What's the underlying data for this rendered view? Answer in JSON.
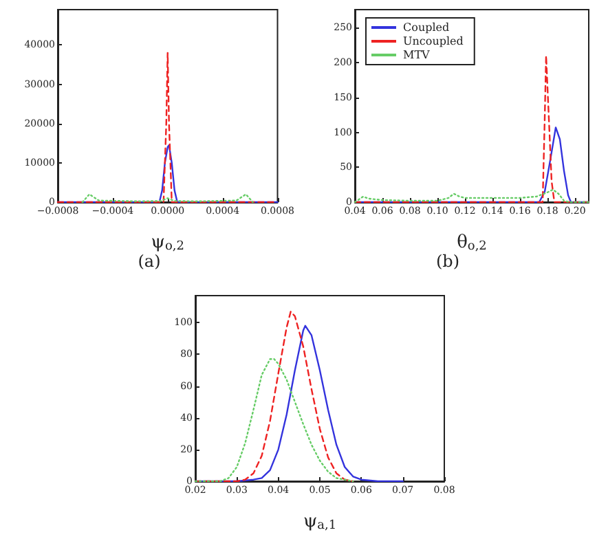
{
  "chart_data": [
    {
      "type": "line",
      "xlabel": "ψ$_{o,2}$",
      "annotations": [
        "(a)"
      ],
      "xlim": [
        -0.0008,
        0.0008
      ],
      "xticks": [
        {
          "value": -0.0008,
          "label": "−0.0008"
        },
        {
          "value": -0.0004,
          "label": "−0.0004"
        },
        {
          "value": 0,
          "label": "0.0000"
        },
        0.0004,
        0.0008
      ],
      "ylim": [
        0,
        49000
      ],
      "yticks": [
        0,
        10000,
        20000,
        30000,
        40000
      ],
      "series": [
        {
          "color": "#3333dd",
          "line_style": "solid",
          "x": [
            -0.0008,
            -6e-05,
            -4e-05,
            -2e-05,
            0,
            1e-05,
            3e-05,
            5e-05,
            7e-05,
            0.0008
          ],
          "values": [
            0,
            0,
            3000,
            10000,
            14000,
            14500,
            10000,
            3000,
            0,
            0
          ]
        },
        {
          "color": "#ee2222",
          "line_style": "dashed",
          "x": [
            -0.0008,
            -3e-05,
            -1e-05,
            0,
            1e-05,
            3e-05,
            0.0008
          ],
          "values": [
            0,
            0,
            20000,
            38000,
            20000,
            0,
            0
          ]
        },
        {
          "color": "#66cc66",
          "line_style": "dotted",
          "x": [
            -0.00062,
            -0.00057,
            -0.0005,
            -0.0002,
            -5e-05,
            0,
            5e-05,
            0.0002,
            0.0005,
            0.00057,
            0.00062
          ],
          "values": [
            0,
            2000,
            400,
            200,
            300,
            1000,
            300,
            200,
            400,
            2000,
            0
          ]
        }
      ]
    },
    {
      "type": "line",
      "xlabel": "θ$_{o,2}$",
      "annotations": [
        "(b)"
      ],
      "legend": "top left",
      "xlim": [
        0.04,
        0.21
      ],
      "xticks": [
        0.04,
        0.06,
        0.08,
        {
          "value": 0.1,
          "label": "0.10"
        },
        0.12,
        0.14,
        0.16,
        0.18,
        {
          "value": 0.2,
          "label": "0.20"
        }
      ],
      "ylim": [
        0,
        276
      ],
      "yticks": [
        0,
        50,
        100,
        150,
        200,
        250
      ],
      "series": [
        {
          "name": "Coupled",
          "color": "#3333dd",
          "line_style": "solid",
          "x": [
            0.04,
            0.174,
            0.178,
            0.182,
            0.186,
            0.189,
            0.192,
            0.195,
            0.197,
            0.21
          ],
          "values": [
            0,
            0,
            15,
            60,
            107,
            90,
            45,
            10,
            0,
            0
          ]
        },
        {
          "name": "Uncoupled",
          "color": "#ee2222",
          "line_style": "dashed",
          "x": [
            0.04,
            0.1765,
            0.178,
            0.179,
            0.181,
            0.183,
            0.185,
            0.21
          ],
          "values": [
            0,
            0,
            120,
            210,
            120,
            30,
            0,
            0
          ]
        },
        {
          "name": "MTV",
          "color": "#66cc66",
          "line_style": "dotted",
          "x": [
            0.04,
            0.046,
            0.05,
            0.06,
            0.08,
            0.1,
            0.108,
            0.112,
            0.116,
            0.12,
            0.16,
            0.172,
            0.18,
            0.184,
            0.188,
            0.192,
            0.196,
            0.21
          ],
          "values": [
            0,
            8,
            5,
            3,
            2,
            2,
            6,
            12,
            8,
            6,
            6,
            8,
            14,
            18,
            12,
            2,
            0,
            0
          ]
        }
      ]
    },
    {
      "type": "line",
      "xlabel": "ψ$_{a,1}$",
      "xlim": [
        0.02,
        0.08
      ],
      "xticks": [
        0.02,
        0.03,
        0.04,
        0.05,
        0.06,
        0.07,
        0.08
      ],
      "ylim": [
        0,
        117
      ],
      "yticks": [
        0,
        20,
        40,
        60,
        80,
        100
      ],
      "series": [
        {
          "color": "#3333dd",
          "line_style": "solid",
          "x": [
            0.02,
            0.03,
            0.034,
            0.036,
            0.038,
            0.04,
            0.042,
            0.044,
            0.046,
            0.0465,
            0.048,
            0.05,
            0.052,
            0.054,
            0.056,
            0.058,
            0.06,
            0.064,
            0.07
          ],
          "values": [
            0,
            0,
            1,
            2,
            7,
            20,
            42,
            70,
            95,
            98,
            92,
            70,
            45,
            23,
            9,
            3,
            1,
            0,
            0
          ]
        },
        {
          "color": "#ee2222",
          "line_style": "dashed",
          "x": [
            0.02,
            0.03,
            0.032,
            0.034,
            0.036,
            0.038,
            0.04,
            0.042,
            0.043,
            0.044,
            0.046,
            0.048,
            0.05,
            0.052,
            0.054,
            0.056,
            0.058
          ],
          "values": [
            0,
            0,
            1,
            5,
            16,
            38,
            68,
            97,
            107,
            104,
            85,
            58,
            33,
            15,
            5,
            1,
            0
          ]
        },
        {
          "color": "#66cc66",
          "line_style": "dotted",
          "x": [
            0.02,
            0.026,
            0.028,
            0.03,
            0.032,
            0.034,
            0.036,
            0.038,
            0.039,
            0.04,
            0.042,
            0.044,
            0.046,
            0.048,
            0.05,
            0.052,
            0.054,
            0.056,
            0.058
          ],
          "values": [
            0,
            0,
            2,
            9,
            24,
            45,
            67,
            77,
            77,
            74,
            64,
            50,
            36,
            23,
            13,
            6,
            2,
            1,
            0
          ]
        }
      ]
    }
  ]
}
